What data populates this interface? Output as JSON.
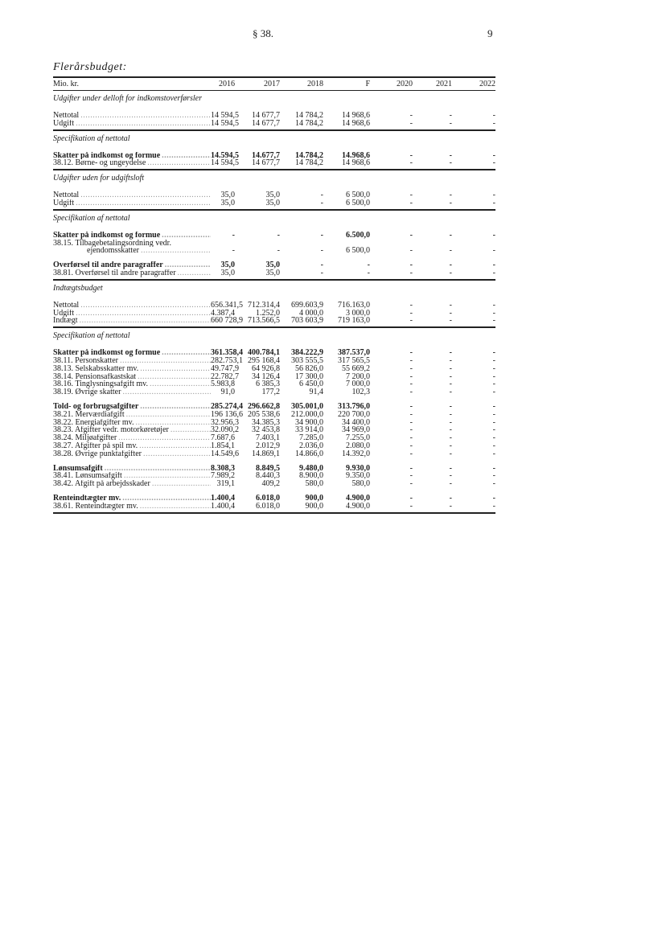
{
  "page": {
    "paragraph": "§ 38.",
    "page_number": "9"
  },
  "title": "Flerårsbudget:",
  "header": {
    "unit": "Mio. kr.",
    "columns": [
      "2016",
      "2017",
      "2018",
      "F",
      "2020",
      "2021",
      "2022"
    ]
  },
  "sections": [
    {
      "heading": "Udgifter under delloft for indkomstoverførsler",
      "groups": [
        [
          {
            "label": "Nettotal",
            "bold": false,
            "values": [
              "14 594,5",
              "14 677,7",
              "14 784,2",
              "14 968,6",
              "-",
              "-",
              "-"
            ]
          },
          {
            "label": "Udgift",
            "bold": false,
            "values": [
              "14 594,5",
              "14 677,7",
              "14 784,2",
              "14 968,6",
              "-",
              "-",
              "-"
            ]
          }
        ]
      ]
    },
    {
      "heading": "Specifikation af nettotal",
      "groups": [
        [
          {
            "label": "Skatter på indkomst og formue",
            "bold": true,
            "values": [
              "14.594,5",
              "14.677,7",
              "14.784,2",
              "14.968,6",
              "-",
              "-",
              "-"
            ]
          },
          {
            "label": "38.12. Børne- og ungeydelse",
            "bold": false,
            "values": [
              "14 594,5",
              "14 677,7",
              "14 784,2",
              "14 968,6",
              "-",
              "-",
              "-"
            ]
          }
        ]
      ]
    },
    {
      "heading": "Udgifter uden for udgiftsloft",
      "groups": [
        [
          {
            "label": "Nettotal",
            "bold": false,
            "values": [
              "35,0",
              "35,0",
              "-",
              "6 500,0",
              "-",
              "-",
              "-"
            ]
          },
          {
            "label": "Udgift",
            "bold": false,
            "values": [
              "35,0",
              "35,0",
              "-",
              "6 500,0",
              "-",
              "-",
              "-"
            ]
          }
        ]
      ]
    },
    {
      "heading": "Specifikation af nettotal",
      "groups": [
        [
          {
            "label": "Skatter på indkomst og formue",
            "bold": true,
            "values": [
              "-",
              "-",
              "-",
              "6.500,0",
              "-",
              "-",
              "-"
            ]
          },
          {
            "label": "38.15. Tilbagebetalingsordning vedr.",
            "bold": false,
            "values": [
              "",
              "",
              "",
              "",
              "",
              "",
              ""
            ]
          },
          {
            "label": "ejendomsskatter",
            "bold": false,
            "indent": true,
            "values": [
              "-",
              "-",
              "-",
              "6 500,0",
              "-",
              "-",
              "-"
            ]
          }
        ],
        [
          {
            "label": "Overførsel til andre paragraffer",
            "bold": true,
            "values": [
              "35,0",
              "35,0",
              "-",
              "-",
              "-",
              "-",
              "-"
            ]
          },
          {
            "label": "38.81. Overførsel til andre paragraffer",
            "bold": false,
            "values": [
              "35,0",
              "35,0",
              "-",
              "-",
              "-",
              "-",
              "-"
            ]
          }
        ]
      ]
    },
    {
      "heading": "Indtægtsbudget",
      "groups": [
        [
          {
            "label": "Nettotal",
            "bold": false,
            "values": [
              "656.341,5",
              "712.314,4",
              "699.603,9",
              "716.163,0",
              "-",
              "-",
              "-"
            ]
          },
          {
            "label": "Udgift",
            "bold": false,
            "values": [
              "4.387,4",
              "1.252,0",
              "4 000,0",
              "3 000,0",
              "-",
              "-",
              "-"
            ]
          },
          {
            "label": "Indtægt",
            "bold": false,
            "values": [
              "660 728,9",
              "713.566,5",
              "703 603,9",
              "719 163,0",
              "-",
              "-",
              "-"
            ]
          }
        ]
      ]
    },
    {
      "heading": "Specifikation af nettotal",
      "groups": [
        [
          {
            "label": "Skatter på indkomst og formue",
            "bold": true,
            "values": [
              "361.358,4",
              "400.784,1",
              "384.222,9",
              "387.537,0",
              "-",
              "-",
              "-"
            ]
          },
          {
            "label": "38.11. Personskatter",
            "bold": false,
            "values": [
              "282.753,1",
              "295 168,4",
              "303 555,5",
              "317 565,5",
              "-",
              "-",
              "-"
            ]
          },
          {
            "label": "38.13. Selskabsskatter mv.",
            "bold": false,
            "values": [
              "49.747,9",
              "64 926,8",
              "56 826,0",
              "55 669,2",
              "-",
              "-",
              "-"
            ]
          },
          {
            "label": "38.14. Pensionsafkastskat",
            "bold": false,
            "values": [
              "22.782,7",
              "34 126,4",
              "17 300,0",
              "7 200,0",
              "-",
              "-",
              "-"
            ]
          },
          {
            "label": "38.16. Tinglysningsafgift mv.",
            "bold": false,
            "values": [
              "5.983,8",
              "6 385,3",
              "6 450,0",
              "7 000,0",
              "-",
              "-",
              "-"
            ]
          },
          {
            "label": "38.19. Øvrige skatter",
            "bold": false,
            "values": [
              "91,0",
              "177,2",
              "91,4",
              "102,3",
              "-",
              "-",
              "-"
            ]
          }
        ],
        [
          {
            "label": "Told- og forbrugsafgifter",
            "bold": true,
            "values": [
              "285.274,4",
              "296.662,8",
              "305.001,0",
              "313.796,0",
              "-",
              "-",
              "-"
            ]
          },
          {
            "label": "38.21. Merværdiafgift",
            "bold": false,
            "values": [
              "196 136,6",
              "205 538,6",
              "212.000,0",
              "220 700,0",
              "-",
              "-",
              "-"
            ]
          },
          {
            "label": "38.22. Energiafgifter mv.",
            "bold": false,
            "values": [
              "32.956,3",
              "34.385,3",
              "34 900,0",
              "34 400,0",
              "-",
              "-",
              "-"
            ]
          },
          {
            "label": "38.23. Afgifter vedr. motorkøretøjer",
            "bold": false,
            "values": [
              "32.090,2",
              "32 453,8",
              "33 914,0",
              "34 969,0",
              "-",
              "-",
              "-"
            ]
          },
          {
            "label": "38.24. Miljøafgifter",
            "bold": false,
            "values": [
              "7.687,6",
              "7.403,1",
              "7.285,0",
              "7.255,0",
              "-",
              "-",
              "-"
            ]
          },
          {
            "label": "38.27. Afgifter på spil mv.",
            "bold": false,
            "values": [
              "1.854,1",
              "2.012,9",
              "2.036,0",
              "2.080,0",
              "-",
              "-",
              "-"
            ]
          },
          {
            "label": "38.28. Øvrige punktafgifter",
            "bold": false,
            "values": [
              "14.549,6",
              "14.869,1",
              "14.866,0",
              "14.392,0",
              "-",
              "-",
              "-"
            ]
          }
        ],
        [
          {
            "label": "Lønsumsafgift",
            "bold": true,
            "values": [
              "8.308,3",
              "8.849,5",
              "9.480,0",
              "9.930,0",
              "-",
              "-",
              "-"
            ]
          },
          {
            "label": "38.41. Lønsumsafgift",
            "bold": false,
            "values": [
              "7.989,2",
              "8.440,3",
              "8.900,0",
              "9.350,0",
              "-",
              "-",
              "-"
            ]
          },
          {
            "label": "38.42. Afgift på arbejdsskader",
            "bold": false,
            "values": [
              "319,1",
              "409,2",
              "580,0",
              "580,0",
              "-",
              "-",
              "-"
            ]
          }
        ],
        [
          {
            "label": "Renteindtægter mv.",
            "bold": true,
            "values": [
              "1.400,4",
              "6.018,0",
              "900,0",
              "4.900,0",
              "-",
              "-",
              "-"
            ]
          },
          {
            "label": "38.61. Renteindtægter mv.",
            "bold": false,
            "values": [
              "1.400,4",
              "6.018,0",
              "900,0",
              "4.900,0",
              "-",
              "-",
              "-"
            ]
          }
        ]
      ]
    }
  ]
}
